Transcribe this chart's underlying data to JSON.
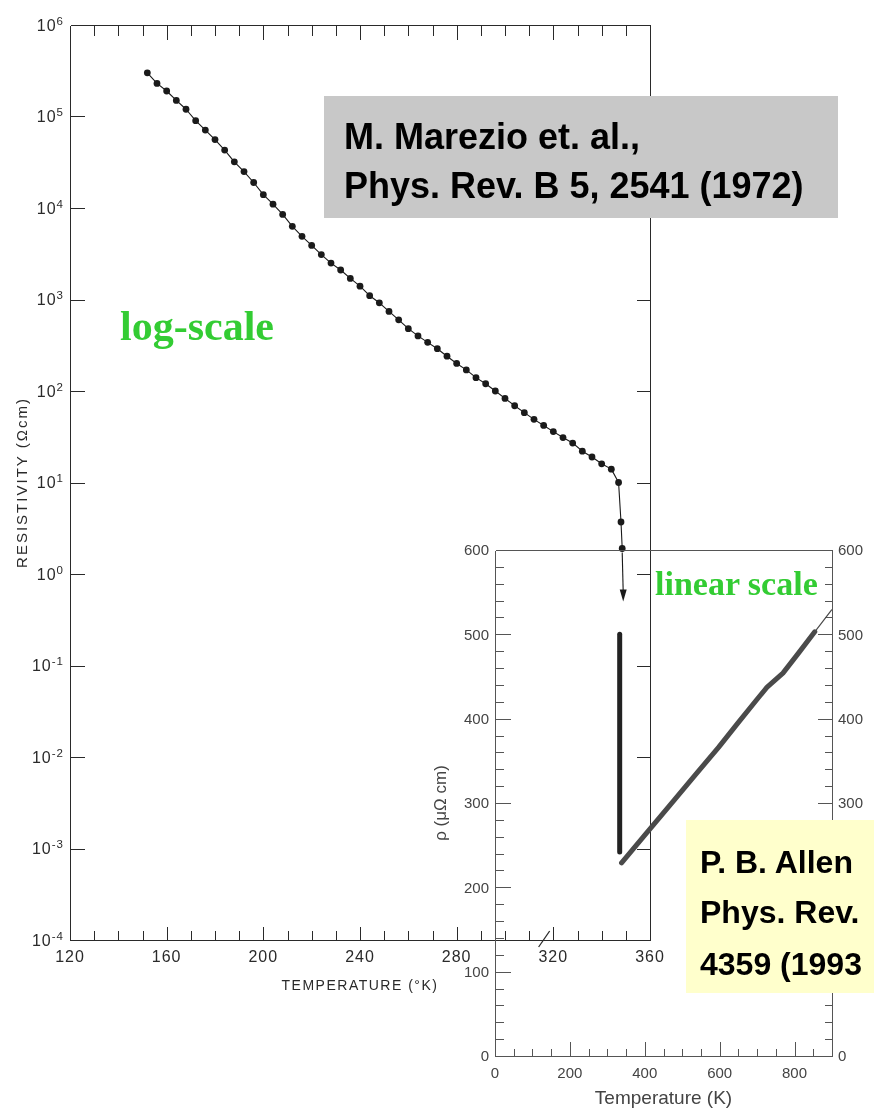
{
  "chart_data": [
    {
      "type": "line",
      "xlabel": "TEMPERATURE (°K)",
      "ylabel": "RESISTIVITY (Ωcm)",
      "log": "y",
      "xlim": [
        120,
        360
      ],
      "ylim": [
        0.0001,
        1000000
      ],
      "xticks": [
        120,
        {
          "value": 130,
          "label": null
        },
        {
          "value": 140,
          "label": null
        },
        {
          "value": 150,
          "label": null
        },
        160,
        {
          "value": 170,
          "label": null
        },
        {
          "value": 180,
          "label": null
        },
        {
          "value": 190,
          "label": null
        },
        200,
        {
          "value": 210,
          "label": null
        },
        {
          "value": 220,
          "label": null
        },
        {
          "value": 230,
          "label": null
        },
        240,
        {
          "value": 250,
          "label": null
        },
        {
          "value": 260,
          "label": null
        },
        {
          "value": 270,
          "label": null
        },
        280,
        {
          "value": 290,
          "label": null
        },
        {
          "value": 300,
          "label": null
        },
        {
          "value": 310,
          "label": null
        },
        320,
        {
          "value": 330,
          "label": null
        },
        {
          "value": 340,
          "label": null
        },
        {
          "value": 350,
          "label": null
        },
        360
      ],
      "yticks": [
        {
          "value": 0.0001,
          "label": "10$^{-4}$"
        },
        {
          "value": 0.001,
          "label": "10$^{-3}$"
        },
        {
          "value": 0.01,
          "label": "10$^{-2}$"
        },
        {
          "value": 0.1,
          "label": "10$^{-1}$"
        },
        {
          "value": 1,
          "label": "10$^{0}$"
        },
        {
          "value": 10,
          "label": "10$^{1}$"
        },
        {
          "value": 100,
          "label": "10$^{2}$"
        },
        {
          "value": 1000,
          "label": "10$^{3}$"
        },
        {
          "value": 10000,
          "label": "10$^{4}$"
        },
        {
          "value": 100000,
          "label": "10$^{5}$"
        },
        {
          "value": 1000000,
          "label": "10$^{6}$"
        }
      ],
      "annotations": [
        "M. Marezio et. al.,\nPhys. Rev. B 5, 2541 (1972)",
        "log-scale"
      ],
      "series": [
        {
          "color": "#1a1a1a",
          "marker": "circle",
          "x": [
            152,
            156,
            160,
            164,
            168,
            172,
            176,
            180,
            184,
            188,
            192,
            196,
            200,
            204,
            208,
            212,
            216,
            220,
            224,
            228,
            232,
            236,
            240,
            244,
            248,
            252,
            256,
            260,
            264,
            268,
            272,
            276,
            280,
            284,
            288,
            292,
            296,
            300,
            304,
            308,
            312,
            316,
            320,
            324,
            328,
            332,
            336,
            340,
            344,
            347,
            348,
            348.5
          ],
          "values": [
            300000,
            230000,
            190000,
            150000,
            120000,
            90000,
            71000,
            56000,
            43000,
            32000,
            25000,
            19000,
            14000,
            11000,
            8500,
            6300,
            4900,
            3900,
            3100,
            2500,
            2100,
            1700,
            1400,
            1100,
            920,
            740,
            600,
            480,
            400,
            340,
            290,
            240,
            200,
            170,
            140,
            120,
            100,
            83,
            69,
            58,
            49,
            42,
            36,
            31,
            27,
            22,
            19,
            16,
            14,
            10,
            3.7,
            1.9
          ]
        }
      ]
    },
    {
      "type": "line",
      "xlabel": "Temperature (K)",
      "ylabel": "ρ (μΩ cm)",
      "xlim": [
        0,
        900
      ],
      "ylim": [
        0,
        600
      ],
      "y2lim": [
        0,
        600
      ],
      "xticks": [
        0,
        {
          "value": 50,
          "label": null
        },
        {
          "value": 100,
          "label": null
        },
        {
          "value": 150,
          "label": null
        },
        200,
        {
          "value": 250,
          "label": null
        },
        {
          "value": 300,
          "label": null
        },
        {
          "value": 350,
          "label": null
        },
        400,
        {
          "value": 450,
          "label": null
        },
        {
          "value": 500,
          "label": null
        },
        {
          "value": 550,
          "label": null
        },
        600,
        {
          "value": 650,
          "label": null
        },
        {
          "value": 700,
          "label": null
        },
        {
          "value": 750,
          "label": null
        },
        800,
        {
          "value": 850,
          "label": null
        }
      ],
      "yticks": [
        0,
        {
          "value": 20,
          "label": null
        },
        {
          "value": 40,
          "label": null
        },
        {
          "value": 60,
          "label": null
        },
        {
          "value": 80,
          "label": null
        },
        100,
        {
          "value": 120,
          "label": null
        },
        {
          "value": 140,
          "label": null
        },
        {
          "value": 160,
          "label": null
        },
        {
          "value": 180,
          "label": null
        },
        200,
        {
          "value": 220,
          "label": null
        },
        {
          "value": 240,
          "label": null
        },
        {
          "value": 260,
          "label": null
        },
        {
          "value": 280,
          "label": null
        },
        300,
        {
          "value": 320,
          "label": null
        },
        {
          "value": 340,
          "label": null
        },
        {
          "value": 360,
          "label": null
        },
        {
          "value": 380,
          "label": null
        },
        400,
        {
          "value": 420,
          "label": null
        },
        {
          "value": 440,
          "label": null
        },
        {
          "value": 460,
          "label": null
        },
        {
          "value": 480,
          "label": null
        },
        500,
        {
          "value": 520,
          "label": null
        },
        {
          "value": 540,
          "label": null
        },
        {
          "value": 560,
          "label": null
        },
        {
          "value": 580,
          "label": null
        },
        600
      ],
      "y2ticks": [
        0,
        300,
        400,
        500,
        600
      ],
      "annotations": [
        "P. B. Allen\nPhys. Rev.\n4359 (1993",
        "linear scale"
      ],
      "series": [
        {
          "color": "#222222",
          "x": [
            333,
            333
          ],
          "values": [
            500,
            242
          ]
        },
        {
          "color": "#4a4a4a",
          "x": [
            338,
            400,
            478,
            540,
            597,
            649,
            700,
            726,
            769,
            811,
            854
          ],
          "values": [
            229,
            262,
            303,
            336,
            366,
            395,
            423,
            437,
            454,
            478,
            503
          ]
        },
        {
          "color": "#4a4a4a",
          "x": [
            854,
            899
          ],
          "values": [
            503,
            529
          ]
        }
      ]
    }
  ]
}
